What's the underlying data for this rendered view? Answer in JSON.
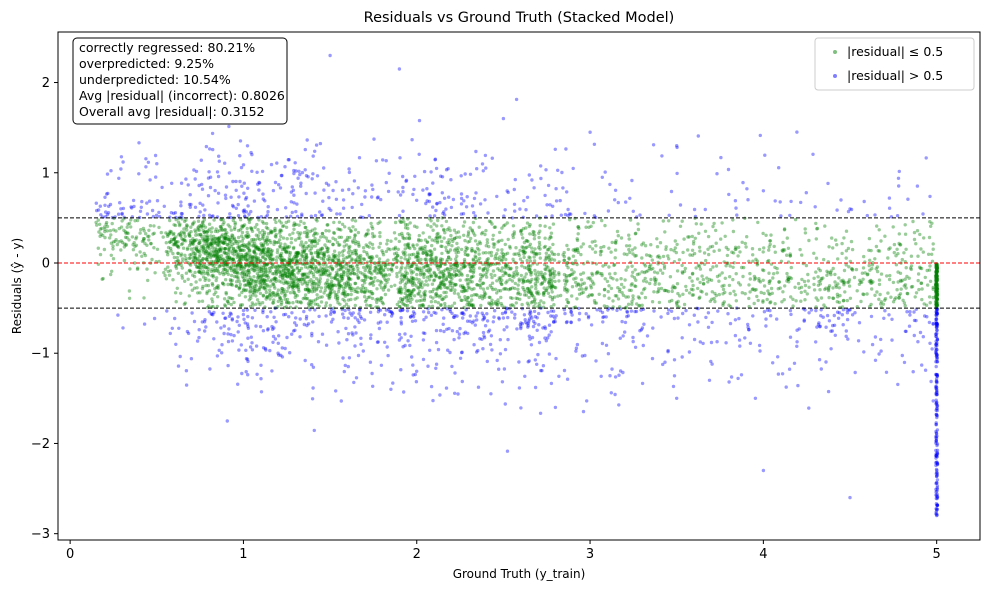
{
  "chart_data": {
    "type": "scatter",
    "title": "Residuals vs Ground Truth (Stacked Model)",
    "xlabel": "Ground Truth (y_train)",
    "ylabel": "Residuals (ŷ - y)",
    "xlim": [
      -0.07,
      5.25
    ],
    "ylim": [
      -3.07,
      2.56
    ],
    "xticks": [
      0,
      1,
      2,
      3,
      4,
      5
    ],
    "yticks": [
      -3,
      -2,
      -1,
      0,
      1,
      2
    ],
    "ytick_labels": [
      "−3",
      "−2",
      "−1",
      "0",
      "1",
      "2"
    ],
    "grid": false,
    "reference_lines": [
      {
        "y": 0.5,
        "style": "dashed",
        "color": "#000000"
      },
      {
        "y": 0,
        "style": "dashed",
        "color": "#ff0000"
      },
      {
        "y": -0.5,
        "style": "dashed",
        "color": "#000000"
      }
    ],
    "series": [
      {
        "name": "|residual| ≤ 0.5",
        "color": "#008000",
        "rule": "abs(residual) <= 0.5"
      },
      {
        "name": "|residual| > 0.5",
        "color": "#0000ff",
        "rule": "abs(residual) > 0.5"
      }
    ],
    "sample_points": [
      [
        0.15,
        0.45
      ],
      [
        0.3,
        0.55
      ],
      [
        0.5,
        1.1
      ],
      [
        0.7,
        1.6
      ],
      [
        1.0,
        1.7
      ],
      [
        1.5,
        2.3
      ],
      [
        1.9,
        2.15
      ],
      [
        2.5,
        1.6
      ],
      [
        3.0,
        1.45
      ],
      [
        3.5,
        1.3
      ],
      [
        4.0,
        0.8
      ],
      [
        4.5,
        0.6
      ],
      [
        1.2,
        -1.0
      ],
      [
        2.0,
        -1.2
      ],
      [
        2.8,
        -1.6
      ],
      [
        3.5,
        -1.5
      ],
      [
        4.0,
        -2.3
      ],
      [
        4.5,
        -2.6
      ],
      [
        5.0,
        -2.8
      ],
      [
        5.0,
        -0.1
      ]
    ],
    "legend": {
      "position": "top-right",
      "entries": [
        "|residual| ≤ 0.5",
        "|residual| > 0.5"
      ]
    },
    "annotation_box": {
      "position": "top-left",
      "lines": [
        "correctly regressed: 80.21%",
        "overpredicted: 9.25%",
        "underpredicted: 10.54%",
        "Avg |residual| (incorrect): 0.8026",
        "Overall avg |residual|: 0.3152"
      ]
    }
  }
}
